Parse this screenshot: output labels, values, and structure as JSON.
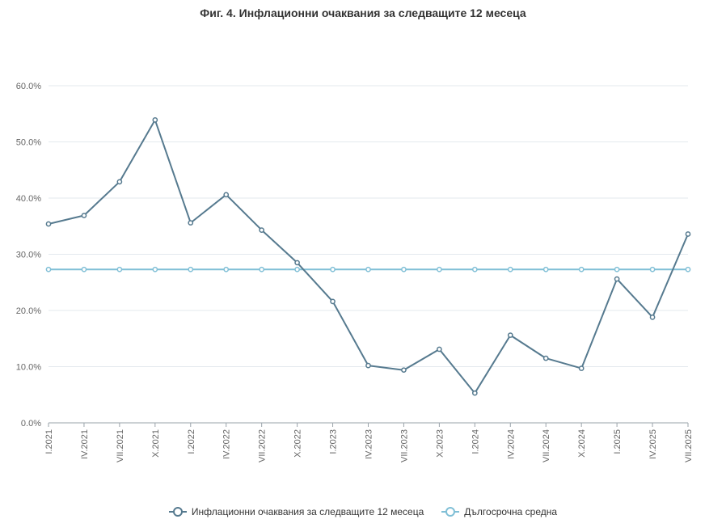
{
  "chart_data": {
    "type": "line",
    "title": "Фиг. 4. Инфлационни очаквания за следващите 12 месеца",
    "categories": [
      "I.2021",
      "IV.2021",
      "VII.2021",
      "X.2021",
      "I.2022",
      "IV.2022",
      "VII.2022",
      "X.2022",
      "I.2023",
      "IV.2023",
      "VII.2023",
      "X.2023",
      "I.2024",
      "IV.2024",
      "VII.2024",
      "X.2024",
      "I.2025",
      "IV.2025",
      "VII.2025"
    ],
    "series": [
      {
        "name": "Инфлационни очаквания за следващите 12 месеца",
        "color": "#567a8f",
        "values": [
          35.4,
          36.9,
          42.9,
          53.9,
          35.6,
          40.6,
          34.3,
          28.5,
          21.6,
          10.2,
          9.4,
          13.1,
          5.3,
          15.6,
          11.5,
          9.7,
          25.6,
          18.8,
          33.6
        ]
      },
      {
        "name": "Дългосрочна средна",
        "color": "#80bfd6",
        "values": [
          27.3,
          27.3,
          27.3,
          27.3,
          27.3,
          27.3,
          27.3,
          27.3,
          27.3,
          27.3,
          27.3,
          27.3,
          27.3,
          27.3,
          27.3,
          27.3,
          27.3,
          27.3,
          27.3
        ]
      }
    ],
    "ylim": [
      0,
      60
    ],
    "yticks": [
      "0.0%",
      "10.0%",
      "20.0%",
      "30.0%",
      "40.0%",
      "50.0%",
      "60.0%"
    ],
    "grid": true,
    "legend_position": "bottom"
  }
}
